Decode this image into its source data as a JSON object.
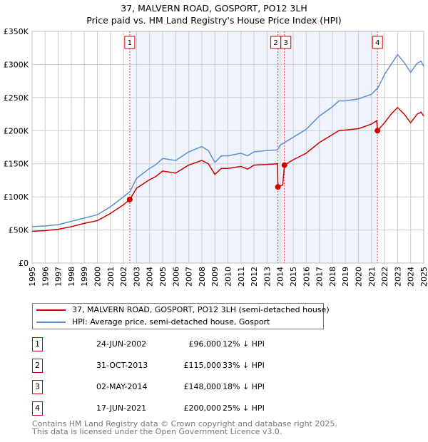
{
  "chart_data": {
    "type": "line",
    "title": "37, MALVERN ROAD, GOSPORT, PO12 3LH",
    "subtitle": "Price paid vs. HM Land Registry's House Price Index (HPI)",
    "xlim": [
      1995,
      2025
    ],
    "ylim": [
      0,
      350000
    ],
    "x_ticks": [
      "1995",
      "1996",
      "1997",
      "1998",
      "1999",
      "2000",
      "2001",
      "2002",
      "2003",
      "2004",
      "2005",
      "2006",
      "2007",
      "2008",
      "2009",
      "2010",
      "2011",
      "2012",
      "2013",
      "2014",
      "2015",
      "2016",
      "2017",
      "2018",
      "2019",
      "2020",
      "2021",
      "2022",
      "2023",
      "2024",
      "2025"
    ],
    "y_ticks": [
      {
        "v": 0,
        "label": "£0"
      },
      {
        "v": 50000,
        "label": "£50K"
      },
      {
        "v": 100000,
        "label": "£100K"
      },
      {
        "v": 150000,
        "label": "£150K"
      },
      {
        "v": 200000,
        "label": "£200K"
      },
      {
        "v": 250000,
        "label": "£250K"
      },
      {
        "v": 300000,
        "label": "£300K"
      },
      {
        "v": 350000,
        "label": "£350K"
      }
    ],
    "grid": true,
    "series": [
      {
        "name": "37, MALVERN ROAD, GOSPORT, PO12 3LH (semi-detached house)",
        "color": "#cc0000",
        "points": [
          [
            1995,
            48
          ],
          [
            1996,
            49
          ],
          [
            1997,
            51
          ],
          [
            1998,
            55
          ],
          [
            1999,
            60
          ],
          [
            2000,
            64
          ],
          [
            2001,
            75
          ],
          [
            2002,
            88
          ],
          [
            2002.48,
            96
          ],
          [
            2003,
            113
          ],
          [
            2004,
            126
          ],
          [
            2004.5,
            131
          ],
          [
            2005,
            139
          ],
          [
            2006,
            136
          ],
          [
            2007,
            148
          ],
          [
            2008,
            155
          ],
          [
            2008.5,
            150
          ],
          [
            2009,
            134
          ],
          [
            2009.5,
            143
          ],
          [
            2010,
            143
          ],
          [
            2011,
            146
          ],
          [
            2011.5,
            142
          ],
          [
            2012,
            148
          ],
          [
            2013,
            149
          ],
          [
            2013.8,
            150
          ],
          [
            2013.83,
            115
          ],
          [
            2014.2,
            118
          ],
          [
            2014.33,
            148
          ],
          [
            2015,
            156
          ],
          [
            2016,
            166
          ],
          [
            2017,
            182
          ],
          [
            2018,
            194
          ],
          [
            2018.5,
            200
          ],
          [
            2019,
            201
          ],
          [
            2020,
            203
          ],
          [
            2021,
            210
          ],
          [
            2021.4,
            215
          ],
          [
            2021.46,
            200
          ],
          [
            2022,
            212
          ],
          [
            2022.5,
            225
          ],
          [
            2023,
            235
          ],
          [
            2023.5,
            225
          ],
          [
            2024,
            212
          ],
          [
            2024.5,
            225
          ],
          [
            2024.8,
            228
          ],
          [
            2025,
            222
          ]
        ]
      },
      {
        "name": "HPI: Average price, semi-detached house, Gosport",
        "color": "#5b8fd1",
        "points": [
          [
            1995,
            55
          ],
          [
            1996,
            56
          ],
          [
            1997,
            58
          ],
          [
            1998,
            63
          ],
          [
            1999,
            68
          ],
          [
            2000,
            73
          ],
          [
            2001,
            85
          ],
          [
            2002,
            100
          ],
          [
            2002.5,
            108
          ],
          [
            2003,
            128
          ],
          [
            2004,
            143
          ],
          [
            2004.5,
            149
          ],
          [
            2005,
            158
          ],
          [
            2006,
            155
          ],
          [
            2007,
            168
          ],
          [
            2008,
            176
          ],
          [
            2008.5,
            170
          ],
          [
            2009,
            152
          ],
          [
            2009.5,
            162
          ],
          [
            2010,
            162
          ],
          [
            2011,
            166
          ],
          [
            2011.5,
            162
          ],
          [
            2012,
            168
          ],
          [
            2013,
            170
          ],
          [
            2013.8,
            171
          ],
          [
            2014,
            178
          ],
          [
            2015,
            190
          ],
          [
            2016,
            202
          ],
          [
            2017,
            222
          ],
          [
            2018,
            236
          ],
          [
            2018.5,
            245
          ],
          [
            2019,
            245
          ],
          [
            2020,
            248
          ],
          [
            2021,
            255
          ],
          [
            2021.5,
            265
          ],
          [
            2022,
            285
          ],
          [
            2022.5,
            300
          ],
          [
            2023,
            315
          ],
          [
            2023.5,
            303
          ],
          [
            2024,
            288
          ],
          [
            2024.5,
            302
          ],
          [
            2024.8,
            305
          ],
          [
            2025,
            297
          ]
        ]
      }
    ],
    "sales": [
      {
        "n": "1",
        "x": 2002.48,
        "price": 96000,
        "date": "24-JUN-2002",
        "price_label": "£96,000",
        "hpi": "12% ↓ HPI"
      },
      {
        "n": "2",
        "x": 2013.83,
        "price": 115000,
        "date": "31-OCT-2013",
        "price_label": "£115,000",
        "hpi": "33% ↓ HPI"
      },
      {
        "n": "3",
        "x": 2014.33,
        "price": 148000,
        "date": "02-MAY-2014",
        "price_label": "£148,000",
        "hpi": "18% ↓ HPI"
      },
      {
        "n": "4",
        "x": 2021.46,
        "price": 200000,
        "date": "17-JUN-2021",
        "price_label": "£200,000",
        "hpi": "25% ↓ HPI"
      }
    ],
    "legend_placement": "below"
  },
  "footer": {
    "line1": "Contains HM Land Registry data © Crown copyright and database right 2025.",
    "line2": "This data is licensed under the Open Government Licence v3.0."
  }
}
